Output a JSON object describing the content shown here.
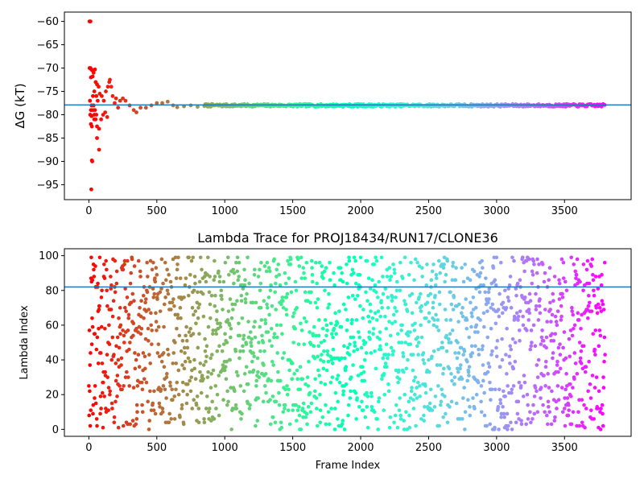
{
  "chart_data": [
    {
      "type": "scatter",
      "title": "",
      "xlabel": "",
      "ylabel": "ΔG (kT)",
      "xlim": [
        -180,
        3990
      ],
      "ylim": [
        -98.2,
        -58
      ],
      "xticks": [
        0,
        500,
        1000,
        1500,
        2000,
        2500,
        3000,
        3500
      ],
      "yticks": [
        -60,
        -65,
        -70,
        -75,
        -80,
        -85,
        -90,
        -95
      ],
      "hline": -77.9,
      "colormap": "rainbow",
      "grid": false,
      "n_frames": 3800,
      "early_points": [
        [
          5,
          -60
        ],
        [
          12,
          -60
        ],
        [
          5,
          -70
        ],
        [
          12,
          -70
        ],
        [
          18,
          -70.3
        ],
        [
          25,
          -70.5
        ],
        [
          35,
          -71
        ],
        [
          45,
          -70.3
        ],
        [
          15,
          -72
        ],
        [
          28,
          -71.8
        ],
        [
          50,
          -73
        ],
        [
          60,
          -73.5
        ],
        [
          72,
          -74
        ],
        [
          40,
          -75
        ],
        [
          55,
          -76
        ],
        [
          65,
          -77
        ],
        [
          80,
          -75.5
        ],
        [
          95,
          -76
        ],
        [
          110,
          -77
        ],
        [
          125,
          -75
        ],
        [
          140,
          -74
        ],
        [
          150,
          -73
        ],
        [
          155,
          -72.5
        ],
        [
          165,
          -74
        ],
        [
          175,
          -76
        ],
        [
          190,
          -77.5
        ],
        [
          200,
          -76.5
        ],
        [
          215,
          -78.5
        ],
        [
          230,
          -77
        ],
        [
          250,
          -76.5
        ],
        [
          270,
          -77
        ],
        [
          300,
          -78
        ],
        [
          330,
          -79
        ],
        [
          350,
          -79.5
        ],
        [
          380,
          -78.5
        ],
        [
          420,
          -78.5
        ],
        [
          460,
          -78
        ],
        [
          500,
          -77.5
        ],
        [
          540,
          -77.5
        ],
        [
          580,
          -77.2
        ],
        [
          620,
          -78
        ],
        [
          650,
          -78.4
        ],
        [
          700,
          -78.2
        ],
        [
          750,
          -78
        ],
        [
          800,
          -78.3
        ],
        [
          850,
          -78.1
        ],
        [
          20,
          -78
        ],
        [
          30,
          -79
        ],
        [
          40,
          -80
        ],
        [
          50,
          -81
        ],
        [
          60,
          -82.5
        ],
        [
          75,
          -83
        ],
        [
          90,
          -81
        ],
        [
          105,
          -80
        ],
        [
          120,
          -79.5
        ],
        [
          135,
          -80.5
        ],
        [
          60,
          -85
        ],
        [
          75,
          -87.5
        ],
        [
          10,
          -80
        ],
        [
          20,
          -80.3
        ],
        [
          15,
          -82
        ],
        [
          22,
          -82.5
        ],
        [
          25,
          -90
        ],
        [
          22,
          -89.8
        ],
        [
          18,
          -96
        ],
        [
          35,
          -78
        ],
        [
          45,
          -79
        ],
        [
          55,
          -80
        ],
        [
          8,
          -77
        ],
        [
          15,
          -79
        ],
        [
          30,
          -76
        ],
        [
          40,
          -81
        ]
      ],
      "late_band": {
        "x_from": 850,
        "x_to": 3800,
        "y_center": -78,
        "y_spread": 0.3
      }
    },
    {
      "type": "scatter",
      "title": "Lambda Trace for PROJ18434/RUN17/CLONE36",
      "xlabel": "Frame Index",
      "ylabel": "Lambda Index",
      "xlim": [
        -180,
        3990
      ],
      "ylim": [
        -4,
        104
      ],
      "xticks": [
        0,
        500,
        1000,
        1500,
        2000,
        2500,
        3000,
        3500
      ],
      "yticks": [
        0,
        20,
        40,
        60,
        80,
        100
      ],
      "hline": 82,
      "colormap": "rainbow",
      "grid": false,
      "n_frames": 3800,
      "lambda_range": [
        0,
        99
      ],
      "sample_step": 2
    }
  ]
}
